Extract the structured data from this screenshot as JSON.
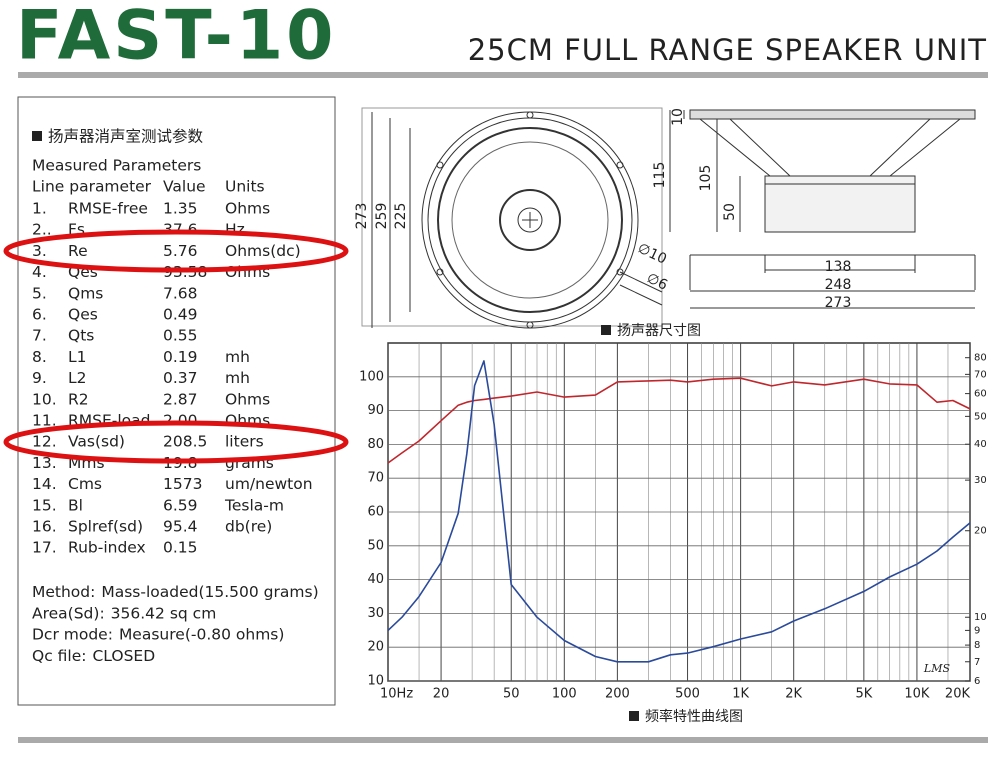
{
  "header": {
    "title": "FAST-10",
    "subtitle": "25CM FULL RANGE SPEAKER UNIT"
  },
  "parameters": {
    "heading": "扬声器消声室测试参数",
    "subheading": "Measured Parameters",
    "columns": [
      "Line parameter",
      "Value",
      "Units"
    ],
    "rows": [
      [
        "1.",
        "RMSE-free",
        "1.35",
        "Ohms"
      ],
      [
        "2..",
        "Fs",
        "37.6",
        "Hz"
      ],
      [
        "3.",
        "Re",
        "5.76",
        "Ohms(dc)"
      ],
      [
        "4.",
        "Qes",
        "93.58",
        "Ohms"
      ],
      [
        "5.",
        "Qms",
        "7.68"
      ],
      [
        "6.",
        "Qes",
        "0.49"
      ],
      [
        "7.",
        "Qts",
        "0.55"
      ],
      [
        "8.",
        "L1",
        "0.19",
        "mh"
      ],
      [
        "9.",
        "L2",
        "0.37",
        "mh"
      ],
      [
        "10.",
        "R2",
        "2.87",
        "Ohms"
      ],
      [
        "11.",
        "RMSE-load",
        "2.00",
        "Ohms"
      ],
      [
        "12.",
        "Vas(sd)",
        "208.5",
        "liters"
      ],
      [
        "13.",
        "Mms",
        "19.8",
        "grams"
      ],
      [
        "14.",
        "Cms",
        "1573",
        "um/newton"
      ],
      [
        "15.",
        "Bl",
        "6.59",
        "Tesla-m"
      ],
      [
        "16.",
        "Splref(sd)",
        "95.4",
        "db(re)"
      ],
      [
        "17.",
        "Rub-index",
        "0.15"
      ]
    ]
  },
  "notes": [
    [
      "Method:",
      "Mass-loaded(15.500 grams)"
    ],
    [
      "Area(Sd):",
      "356.42 sq cm"
    ],
    [
      "Dcr mode:",
      "Measure(-0.80 ohms)"
    ],
    [
      "Qc file:",
      "CLOSED"
    ]
  ],
  "dimensions": {
    "caption": "扬声器尺寸图",
    "front": [
      "273",
      "259",
      "225",
      "∅10",
      "∅6"
    ],
    "side": [
      "10",
      "115",
      "105",
      "50",
      "138",
      "248",
      "273"
    ]
  },
  "chart_data": {
    "type": "line",
    "caption": "频率特性曲线图",
    "watermark": "LMS",
    "x": [
      10,
      12,
      15,
      20,
      25,
      28,
      31,
      35,
      40,
      50,
      70,
      100,
      150,
      200,
      300,
      400,
      500,
      700,
      1000,
      1500,
      2000,
      3000,
      5000,
      7000,
      10000,
      13000,
      16000,
      20000
    ],
    "xscale": "log",
    "xlim": [
      10,
      20000
    ],
    "xticks": [
      {
        "value": 10,
        "label": "10Hz"
      },
      20,
      50,
      100,
      200,
      500,
      {
        "value": 1000,
        "label": "1K"
      },
      {
        "value": 2000,
        "label": "2K"
      },
      {
        "value": 5000,
        "label": "5K"
      },
      {
        "value": 10000,
        "label": "10K"
      },
      {
        "value": 20000,
        "label": "20K"
      }
    ],
    "xminor": [
      15,
      30,
      40,
      60,
      70,
      80,
      90,
      150,
      300,
      400,
      600,
      700,
      800,
      900,
      1500,
      3000,
      4000,
      6000,
      7000,
      8000,
      9000,
      15000
    ],
    "ylim": [
      10,
      110
    ],
    "yticks": [
      10,
      20,
      30,
      40,
      50,
      60,
      70,
      80,
      90,
      100
    ],
    "y2scale": "log",
    "y2lim": [
      6,
      90
    ],
    "y2ticks": [
      6,
      7,
      8,
      9,
      10,
      20,
      30,
      40,
      50,
      60,
      70,
      80
    ],
    "grid": true,
    "series": [
      {
        "color": "#c0272d",
        "values": [
          74.5,
          77.5,
          81,
          87,
          91.6,
          92.5,
          93,
          93.3,
          93.7,
          94.3,
          95.5,
          94,
          94.6,
          98.5,
          98.8,
          99,
          98.5,
          99.3,
          99.6,
          97.3,
          98.5,
          97.6,
          99.3,
          97.9,
          97.6,
          92.5,
          93,
          90.5
        ]
      },
      {
        "color": "#2a4a9c",
        "axis": "y2",
        "values": [
          9,
          10,
          11.8,
          15.5,
          23,
          37,
          64,
          78,
          47,
          13,
          10,
          8.3,
          7.3,
          7,
          7,
          7.4,
          7.5,
          7.9,
          8.4,
          8.9,
          9.7,
          10.7,
          12.3,
          13.8,
          15.3,
          17,
          19,
          21.3
        ]
      }
    ]
  }
}
